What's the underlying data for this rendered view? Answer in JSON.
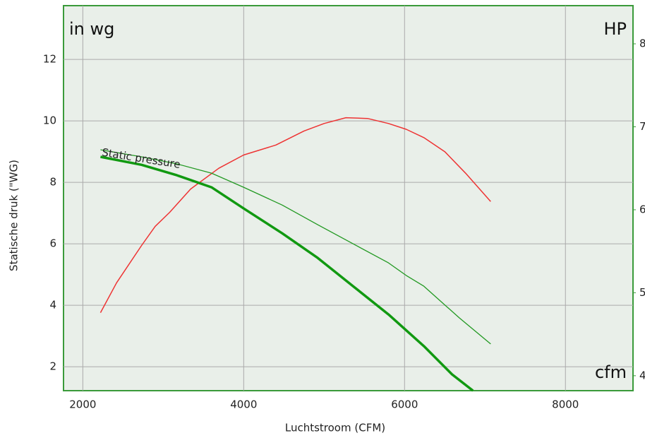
{
  "chart_data": {
    "type": "line",
    "xlabel": "Luchtstroom (CFM)",
    "ylabel": "Statische druk (\"WG)",
    "y_unit_label": "in wg",
    "y2_unit_label": "HP",
    "x_unit_label": "cfm",
    "xlim": [
      1760,
      8840
    ],
    "xticks": [
      2000,
      4000,
      6000,
      8000
    ],
    "ylim": [
      1.22,
      13.75
    ],
    "yticks": [
      2,
      4,
      6,
      8,
      10,
      12
    ],
    "y2lim": [
      3.82,
      8.46
    ],
    "y2ticks": [
      4,
      5,
      6,
      7,
      8
    ],
    "grid": true,
    "series": [
      {
        "color": "#ee3333",
        "axis": "y2",
        "x": [
          2220,
          2420,
          2730,
          2900,
          3080,
          3340,
          3690,
          4000,
          4400,
          4750,
          5000,
          5270,
          5540,
          5800,
          6020,
          6240,
          6500,
          6760,
          7070
        ],
        "values": [
          4.76,
          5.12,
          5.57,
          5.8,
          5.97,
          6.25,
          6.5,
          6.66,
          6.78,
          6.95,
          7.04,
          7.11,
          7.1,
          7.04,
          6.97,
          6.87,
          6.7,
          6.44,
          6.1
        ]
      },
      {
        "color": "#119911",
        "width": 3.5,
        "x": [
          2220,
          2730,
          3170,
          3600,
          4000,
          4480,
          4920,
          5360,
          5800,
          6240,
          6590,
          6850
        ],
        "values": [
          8.83,
          8.57,
          8.23,
          7.84,
          7.15,
          6.34,
          5.54,
          4.62,
          3.7,
          2.67,
          1.75,
          1.22
        ]
      },
      {
        "name": "Static pressure",
        "color": "#229922",
        "width": 1.3,
        "x": [
          2220,
          2730,
          3170,
          3600,
          4000,
          4480,
          4920,
          5360,
          5800,
          6020,
          6240,
          6680,
          7070
        ],
        "values": [
          9.06,
          8.83,
          8.6,
          8.3,
          7.84,
          7.26,
          6.62,
          6.0,
          5.38,
          4.97,
          4.62,
          3.59,
          2.74
        ]
      }
    ]
  }
}
